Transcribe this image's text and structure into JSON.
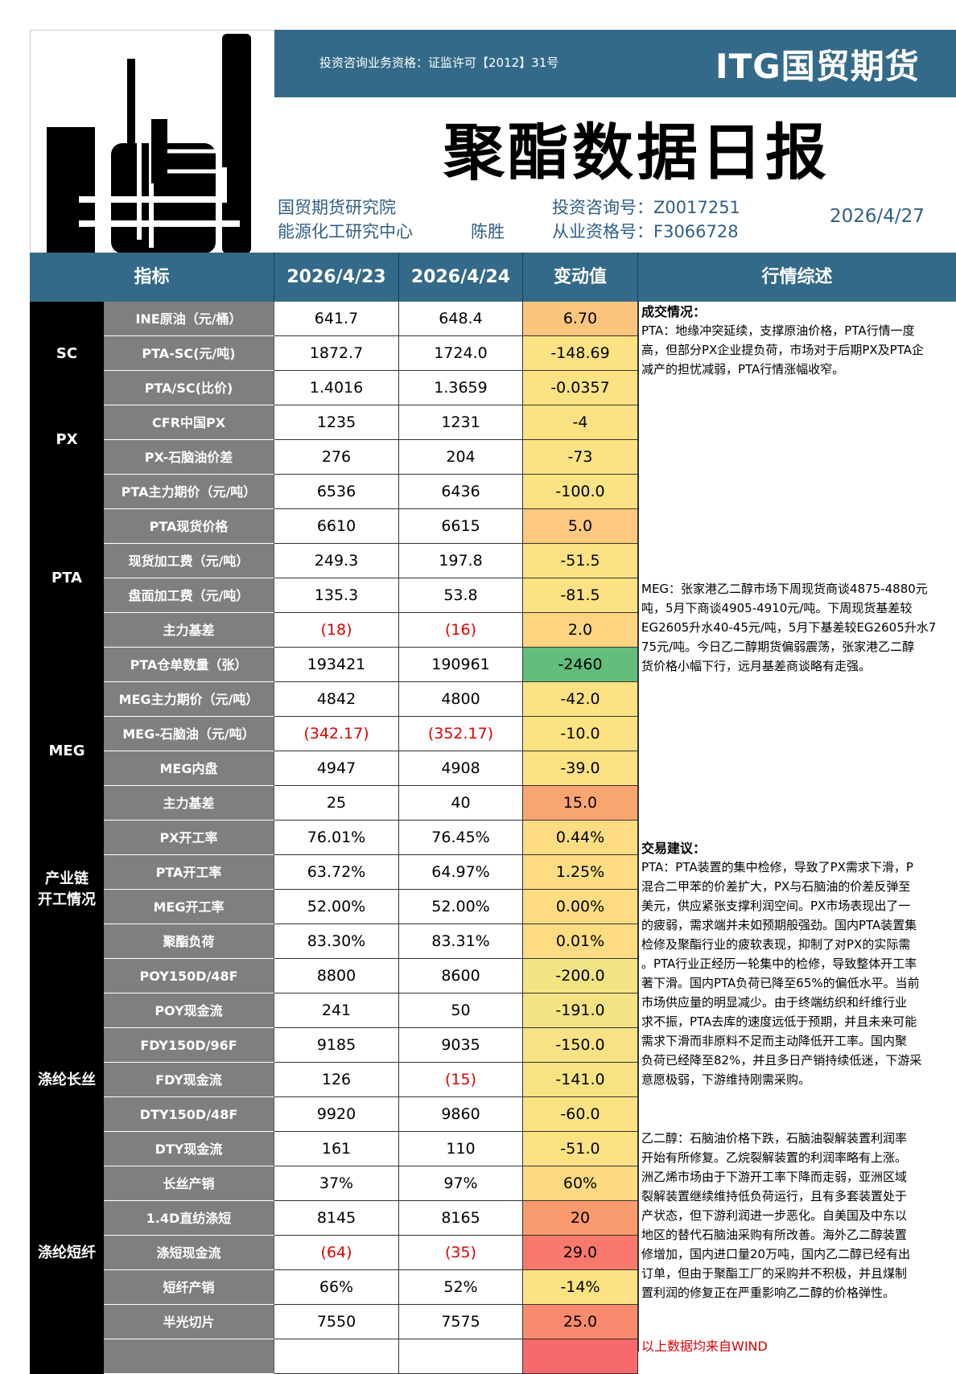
{
  "header": {
    "license": "投资咨询业务资格：证监许可【2012】31号",
    "brand": "ITG国贸期货",
    "title": "聚酯数据日报",
    "institute": "国贸期货研究院",
    "center": "能源化工研究中心",
    "author": "陈胜",
    "consult_no": "投资咨询号：Z0017251",
    "qual_no": "从业资格号：F3066728",
    "date": "2026/4/27"
  },
  "table": {
    "columns": [
      "指标",
      "2026/4/23",
      "2026/4/24",
      "变动值",
      "行情综述"
    ],
    "groups": [
      {
        "label": "SC",
        "rows": 3
      },
      {
        "label": "PX",
        "rows": 2
      },
      {
        "label": "PTA",
        "rows": 6
      },
      {
        "label": "MEG",
        "rows": 4
      },
      {
        "label": "产业链\n开工情况",
        "rows": 4
      },
      {
        "label": "涤纶长丝",
        "rows": 7
      },
      {
        "label": "涤纶短纤",
        "rows": 3
      },
      {
        "label": "",
        "rows": 2
      }
    ],
    "rows": [
      {
        "label": "INE原油（元/桶）",
        "d1": "641.7",
        "d2": "648.4",
        "change": "6.70",
        "color": "#fcc57d"
      },
      {
        "label": "PTA-SC(元/吨)",
        "d1": "1872.7",
        "d2": "1724.0",
        "change": "-148.69",
        "color": "#fde283"
      },
      {
        "label": "PTA/SC(比价)",
        "d1": "1.4016",
        "d2": "1.3659",
        "change": "-0.0357",
        "color": "#fde283"
      },
      {
        "label": "CFR中国PX",
        "d1": "1235",
        "d2": "1231",
        "change": "-4",
        "color": "#fde283"
      },
      {
        "label": "PX-石脑油价差",
        "d1": "276",
        "d2": "204",
        "change": "-73",
        "color": "#fde283"
      },
      {
        "label": "PTA主力期价（元/吨）",
        "d1": "6536",
        "d2": "6436",
        "change": "-100.0",
        "color": "#fbe283"
      },
      {
        "label": "PTA现货价格",
        "d1": "6610",
        "d2": "6615",
        "change": "5.0",
        "color": "#fcc97e"
      },
      {
        "label": "现货加工费（元/吨）",
        "d1": "249.3",
        "d2": "197.8",
        "change": "-51.5",
        "color": "#fde283"
      },
      {
        "label": "盘面加工费（元/吨）",
        "d1": "135.3",
        "d2": "53.8",
        "change": "-81.5",
        "color": "#fde283"
      },
      {
        "label": "主力基差",
        "d1": "(18)",
        "d2": "(16)",
        "change": "2.0",
        "color": "#fdd480",
        "d1_red": true,
        "d2_red": true
      },
      {
        "label": "PTA仓单数量（张）",
        "d1": "193421",
        "d2": "190961",
        "change": "-2460",
        "color": "#63be7b"
      },
      {
        "label": "MEG主力期价（元/吨）",
        "d1": "4842",
        "d2": "4800",
        "change": "-42.0",
        "color": "#fde283"
      },
      {
        "label": "MEG-石脑油（元/吨）",
        "d1": "(342.17)",
        "d2": "(352.17)",
        "change": "-10.0",
        "color": "#fde283",
        "d1_red": true,
        "d2_red": true
      },
      {
        "label": "MEG内盘",
        "d1": "4947",
        "d2": "4908",
        "change": "-39.0",
        "color": "#fde283"
      },
      {
        "label": "主力基差",
        "d1": "25",
        "d2": "40",
        "change": "15.0",
        "color": "#f9a570"
      },
      {
        "label": "PX开工率",
        "d1": "76.01%",
        "d2": "76.45%",
        "change": "0.44%",
        "color": "#fddc82"
      },
      {
        "label": "PTA开工率",
        "d1": "63.72%",
        "d2": "64.97%",
        "change": "1.25%",
        "color": "#fddc82"
      },
      {
        "label": "MEG开工率",
        "d1": "52.00%",
        "d2": "52.00%",
        "change": "0.00%",
        "color": "#fddc82"
      },
      {
        "label": "聚酯负荷",
        "d1": "83.30%",
        "d2": "83.31%",
        "change": "0.01%",
        "color": "#fddc82"
      },
      {
        "label": "POY150D/48F",
        "d1": "8800",
        "d2": "8600",
        "change": "-200.0",
        "color": "#f3e383"
      },
      {
        "label": "POY现金流",
        "d1": "241",
        "d2": "50",
        "change": "-191.0",
        "color": "#f4e383"
      },
      {
        "label": "FDY150D/96F",
        "d1": "9185",
        "d2": "9035",
        "change": "-150.0",
        "color": "#f7e383"
      },
      {
        "label": "FDY现金流",
        "d1": "126",
        "d2": "(15)",
        "change": "-141.0",
        "color": "#f8e383",
        "d2_red": true
      },
      {
        "label": "DTY150D/48F",
        "d1": "9920",
        "d2": "9860",
        "change": "-60.0",
        "color": "#fde283"
      },
      {
        "label": "DTY现金流",
        "d1": "161",
        "d2": "110",
        "change": "-51.0",
        "color": "#fde283"
      },
      {
        "label": "长丝产销",
        "d1": "37%",
        "d2": "97%",
        "change": "60%",
        "color": "#fdd981"
      },
      {
        "label": "1.4D直纺涤短",
        "d1": "8145",
        "d2": "8165",
        "change": "20",
        "color": "#f99a6e"
      },
      {
        "label": "涤短现金流",
        "d1": "(64)",
        "d2": "(35)",
        "change": "29.0",
        "color": "#f8796c",
        "d1_red": true,
        "d2_red": true
      },
      {
        "label": "短纤产销",
        "d1": "66%",
        "d2": "52%",
        "change": "-14%",
        "color": "#fde283"
      },
      {
        "label": "半光切片",
        "d1": "7550",
        "d2": "7575",
        "change": "25.0",
        "color": "#f98a6d"
      },
      {
        "label": "",
        "d1": "",
        "d2": "",
        "change": "",
        "color": "#f8696b"
      }
    ]
  },
  "commentary": {
    "deal_heading": "成交情况：",
    "deal_pta": [
      "PTA：地缘冲突延续，支撑原油价格，PTA行情一度",
      "高，但部分PX企业提负荷，市场对于后期PX及PTA企",
      "减产的担忧减弱，PTA行情涨幅收窄。"
    ],
    "deal_meg": [
      "MEG：张家港乙二醇市场下周现货商谈4875-4880元",
      "吨，5月下商谈4905-4910元/吨。下周现货基差较",
      "EG2605升水40-45元/吨，5月下基差较EG2605升水7",
      "75元/吨。今日乙二醇期货偏弱震荡，张家港乙二醇",
      "货价格小幅下行，远月基差商谈略有走强。"
    ],
    "advice_heading": "交易建议：",
    "advice_pta": [
      "PTA：PTA装置的集中检修，导致了PX需求下滑，P",
      "混合二甲苯的价差扩大，PX与石脑油的价差反弹至",
      "美元，供应紧张支撑利润空间。PX市场表现出了一",
      "的疲弱，需求端并未如预期般强劲。国内PTA装置集",
      "检修及聚酯行业的疲软表现，抑制了对PX的实际需",
      "。PTA行业正经历一轮集中的检修，导致整体开工率",
      "著下滑。国内PTA负荷已降至65%的偏低水平。当前",
      "市场供应量的明显减少。由于终端纺织和纤维行业",
      "求不振，PTA去库的速度远低于预期，并且未来可能",
      "需求下滑而非原料不足而主动降低开工率。国内聚",
      "负荷已经降至82%，并且多日产销持续低迷，下游采",
      "意愿极弱，下游维持刚需采购。"
    ],
    "advice_meg": [
      "乙二醇：石脑油价格下跌，石脑油裂解装置利润率",
      "开始有所修复。乙烷裂解装置的利润率略有上涨。",
      "洲乙烯市场由于下游开工率下降而走弱，亚洲区域",
      "裂解装置继续维持低负荷运行，且有多套装置处于",
      "产状态，但下游利润进一步恶化。自美国及中东以",
      "地区的替代石脑油采购有所改善。海外乙二醇装置",
      "修增加，国内进口量20万吨，国内乙二醇已经有出",
      "订单，但由于聚酯工厂的采购并不积极，并且煤制",
      "置利润的修复正在严重影响乙二醇的价格弹性。"
    ],
    "source": "以上数据均来自WIND"
  }
}
